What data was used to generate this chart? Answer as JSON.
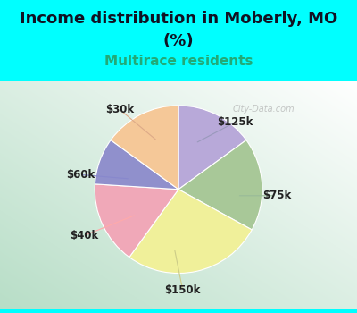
{
  "title_line1": "Income distribution in Moberly, MO",
  "title_line2": "(%)",
  "subtitle": "Multirace residents",
  "bg_color": "#00FFFF",
  "chart_bg_color1": "#cce8d8",
  "chart_bg_color2": "#e8f4ee",
  "labels": [
    "$125k",
    "$75k",
    "$150k",
    "$40k",
    "$60k",
    "$30k"
  ],
  "values": [
    15,
    18,
    27,
    16,
    9,
    15
  ],
  "colors": [
    "#b8a9d9",
    "#a8c898",
    "#f0f09a",
    "#f0a8b8",
    "#9090cc",
    "#f5c898"
  ],
  "startangle": 90,
  "title_fontsize": 13,
  "subtitle_fontsize": 11,
  "subtitle_color": "#22aa77",
  "label_fontsize": 8.5,
  "watermark": "City-Data.com"
}
